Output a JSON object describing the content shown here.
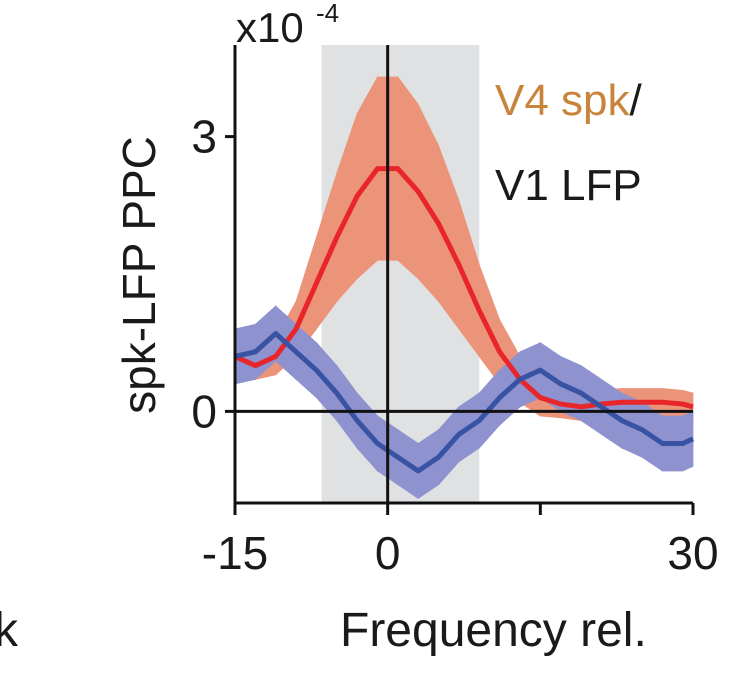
{
  "chart_data": {
    "type": "line",
    "y_scale_label": "x10",
    "y_scale_exponent": "-4",
    "ylabel": "spk-LFP PPC",
    "xlabel": "Frequency rel.",
    "cropped_label": "k",
    "legend_text": [
      "V4 spk",
      "/",
      "V1 LFP"
    ],
    "legend_colors": [
      "#c8843a",
      "#1a1a1a",
      "#1a1a1a"
    ],
    "xlim": [
      -15,
      30
    ],
    "ylim": [
      -1,
      4
    ],
    "xticks": [
      -15,
      0,
      30
    ],
    "minor_xticks": [
      15
    ],
    "yticks": [
      3,
      0
    ],
    "shaded_region": [
      -6.5,
      9
    ],
    "shaded_color": "#e0e1e3",
    "x": [
      -15,
      -13,
      -11,
      -9,
      -7,
      -5,
      -3,
      -1,
      1,
      3,
      5,
      7,
      9,
      11,
      13,
      15,
      17,
      19,
      21,
      23,
      25,
      27,
      29,
      30
    ],
    "series": [
      {
        "color": "#e8262a",
        "band_color": "#eb9479",
        "values": [
          0.6,
          0.5,
          0.6,
          0.9,
          1.4,
          1.9,
          2.35,
          2.65,
          2.65,
          2.4,
          2.05,
          1.6,
          1.1,
          0.65,
          0.35,
          0.15,
          0.08,
          0.05,
          0.08,
          0.1,
          0.1,
          0.1,
          0.08,
          0.05
        ],
        "errors": [
          0.15,
          0.15,
          0.2,
          0.3,
          0.5,
          0.7,
          0.9,
          1.0,
          1.0,
          0.95,
          0.85,
          0.7,
          0.5,
          0.35,
          0.25,
          0.2,
          0.15,
          0.15,
          0.15,
          0.15,
          0.15,
          0.15,
          0.15,
          0.15
        ]
      },
      {
        "color": "#3953a4",
        "band_color": "#8e92cf",
        "values": [
          0.6,
          0.65,
          0.85,
          0.65,
          0.45,
          0.2,
          -0.1,
          -0.35,
          -0.5,
          -0.65,
          -0.5,
          -0.25,
          -0.1,
          0.15,
          0.35,
          0.45,
          0.3,
          0.2,
          0.05,
          -0.1,
          -0.2,
          -0.35,
          -0.35,
          -0.3
        ],
        "errors": [
          0.3,
          0.3,
          0.3,
          0.3,
          0.3,
          0.3,
          0.3,
          0.3,
          0.3,
          0.3,
          0.3,
          0.3,
          0.3,
          0.3,
          0.3,
          0.3,
          0.3,
          0.3,
          0.3,
          0.3,
          0.3,
          0.3,
          0.3,
          0.3
        ]
      }
    ]
  }
}
